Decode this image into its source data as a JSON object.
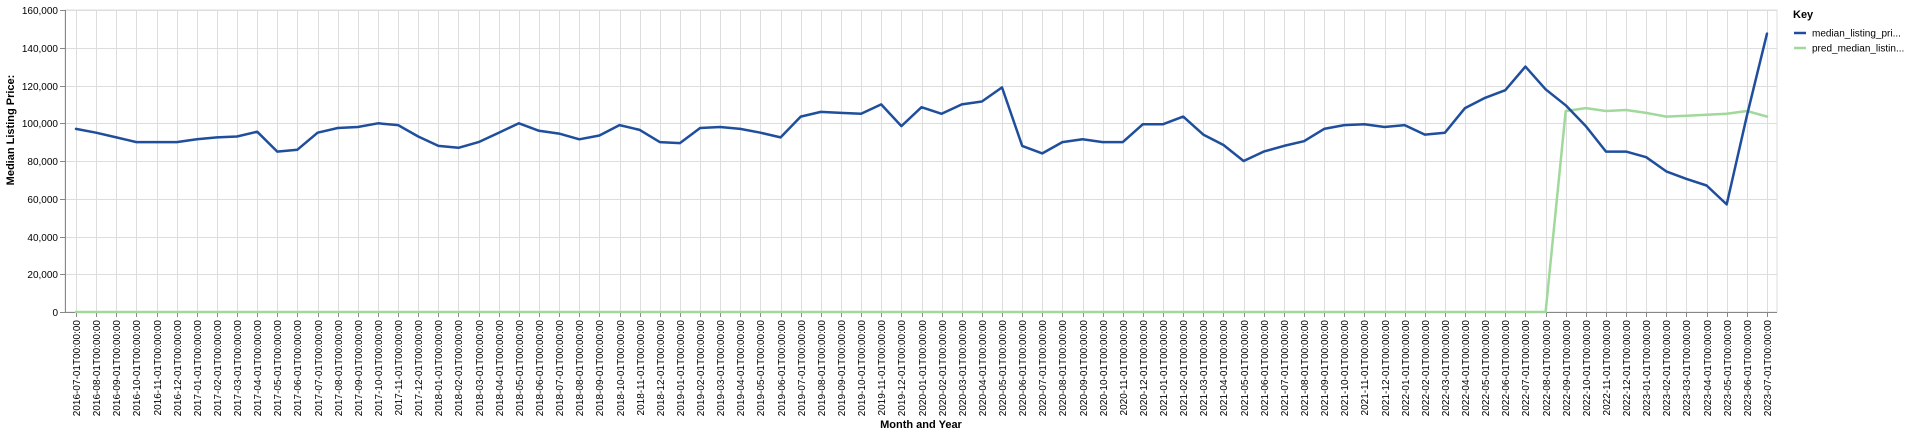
{
  "chart_data": {
    "type": "line",
    "xlabel": "Month and Year",
    "ylabel": "Median Listing Price:",
    "ylim": [
      0,
      160000
    ],
    "yticks": [
      "0",
      "20,000",
      "40,000",
      "60,000",
      "80,000",
      "100,000",
      "120,000",
      "140,000",
      "160,000"
    ],
    "grid": true,
    "legend": {
      "title": "Key",
      "position": "top-right"
    },
    "categories": [
      "2016-07-01T00:00:00",
      "2016-08-01T00:00:00",
      "2016-09-01T00:00:00",
      "2016-10-01T00:00:00",
      "2016-11-01T00:00:00",
      "2016-12-01T00:00:00",
      "2017-01-01T00:00:00",
      "2017-02-01T00:00:00",
      "2017-03-01T00:00:00",
      "2017-04-01T00:00:00",
      "2017-05-01T00:00:00",
      "2017-06-01T00:00:00",
      "2017-07-01T00:00:00",
      "2017-08-01T00:00:00",
      "2017-09-01T00:00:00",
      "2017-10-01T00:00:00",
      "2017-11-01T00:00:00",
      "2017-12-01T00:00:00",
      "2018-01-01T00:00:00",
      "2018-02-01T00:00:00",
      "2018-03-01T00:00:00",
      "2018-04-01T00:00:00",
      "2018-05-01T00:00:00",
      "2018-06-01T00:00:00",
      "2018-07-01T00:00:00",
      "2018-08-01T00:00:00",
      "2018-09-01T00:00:00",
      "2018-10-01T00:00:00",
      "2018-11-01T00:00:00",
      "2018-12-01T00:00:00",
      "2019-01-01T00:00:00",
      "2019-02-01T00:00:00",
      "2019-03-01T00:00:00",
      "2019-04-01T00:00:00",
      "2019-05-01T00:00:00",
      "2019-06-01T00:00:00",
      "2019-07-01T00:00:00",
      "2019-08-01T00:00:00",
      "2019-09-01T00:00:00",
      "2019-10-01T00:00:00",
      "2019-11-01T00:00:00",
      "2019-12-01T00:00:00",
      "2020-01-01T00:00:00",
      "2020-02-01T00:00:00",
      "2020-03-01T00:00:00",
      "2020-04-01T00:00:00",
      "2020-05-01T00:00:00",
      "2020-06-01T00:00:00",
      "2020-07-01T00:00:00",
      "2020-08-01T00:00:00",
      "2020-09-01T00:00:00",
      "2020-10-01T00:00:00",
      "2020-11-01T00:00:00",
      "2020-12-01T00:00:00",
      "2021-01-01T00:00:00",
      "2021-02-01T00:00:00",
      "2021-03-01T00:00:00",
      "2021-04-01T00:00:00",
      "2021-05-01T00:00:00",
      "2021-06-01T00:00:00",
      "2021-07-01T00:00:00",
      "2021-08-01T00:00:00",
      "2021-09-01T00:00:00",
      "2021-10-01T00:00:00",
      "2021-11-01T00:00:00",
      "2021-12-01T00:00:00",
      "2022-01-01T00:00:00",
      "2022-02-01T00:00:00",
      "2022-03-01T00:00:00",
      "2022-04-01T00:00:00",
      "2022-05-01T00:00:00",
      "2022-06-01T00:00:00",
      "2022-07-01T00:00:00",
      "2022-08-01T00:00:00",
      "2022-09-01T00:00:00",
      "2022-10-01T00:00:00",
      "2022-11-01T00:00:00",
      "2022-12-01T00:00:00",
      "2023-01-01T00:00:00",
      "2023-02-01T00:00:00",
      "2023-03-01T00:00:00",
      "2023-04-01T00:00:00",
      "2023-05-01T00:00:00",
      "2023-06-01T00:00:00",
      "2023-07-01T00:00:00"
    ],
    "series": [
      {
        "name": "median_listing_pri...",
        "color": "#1f4e9c",
        "values": [
          97000,
          95000,
          92500,
          90000,
          90000,
          90000,
          91500,
          92500,
          93000,
          95500,
          85000,
          86000,
          95000,
          97500,
          98000,
          100000,
          99000,
          93000,
          88000,
          87000,
          90000,
          95000,
          100000,
          96000,
          94500,
          91500,
          93500,
          99000,
          96500,
          90000,
          89500,
          97500,
          98000,
          97000,
          95000,
          92500,
          103500,
          106000,
          105500,
          105000,
          110000,
          98500,
          108500,
          105000,
          110000,
          111500,
          119000,
          88000,
          84000,
          90000,
          91500,
          90000,
          90000,
          99500,
          99500,
          103500,
          94000,
          88500,
          80000,
          85000,
          88000,
          90500,
          97000,
          99000,
          99500,
          98000,
          99000,
          94000,
          95000,
          108000,
          113500,
          117500,
          130000,
          118000,
          109500,
          98500,
          85000,
          85000,
          82000,
          74500,
          70500,
          67000,
          57000,
          104000,
          147500
        ]
      },
      {
        "name": "pred_median_listin...",
        "color": "#a0d99b",
        "values": [
          0,
          0,
          0,
          0,
          0,
          0,
          0,
          0,
          0,
          0,
          0,
          0,
          0,
          0,
          0,
          0,
          0,
          0,
          0,
          0,
          0,
          0,
          0,
          0,
          0,
          0,
          0,
          0,
          0,
          0,
          0,
          0,
          0,
          0,
          0,
          0,
          0,
          0,
          0,
          0,
          0,
          0,
          0,
          0,
          0,
          0,
          0,
          0,
          0,
          0,
          0,
          0,
          0,
          0,
          0,
          0,
          0,
          0,
          0,
          0,
          0,
          0,
          0,
          0,
          0,
          0,
          0,
          0,
          0,
          0,
          0,
          0,
          0,
          0,
          106500,
          108000,
          106500,
          107000,
          105500,
          103500,
          104000,
          104500,
          105000,
          106500,
          103500
        ]
      }
    ]
  }
}
